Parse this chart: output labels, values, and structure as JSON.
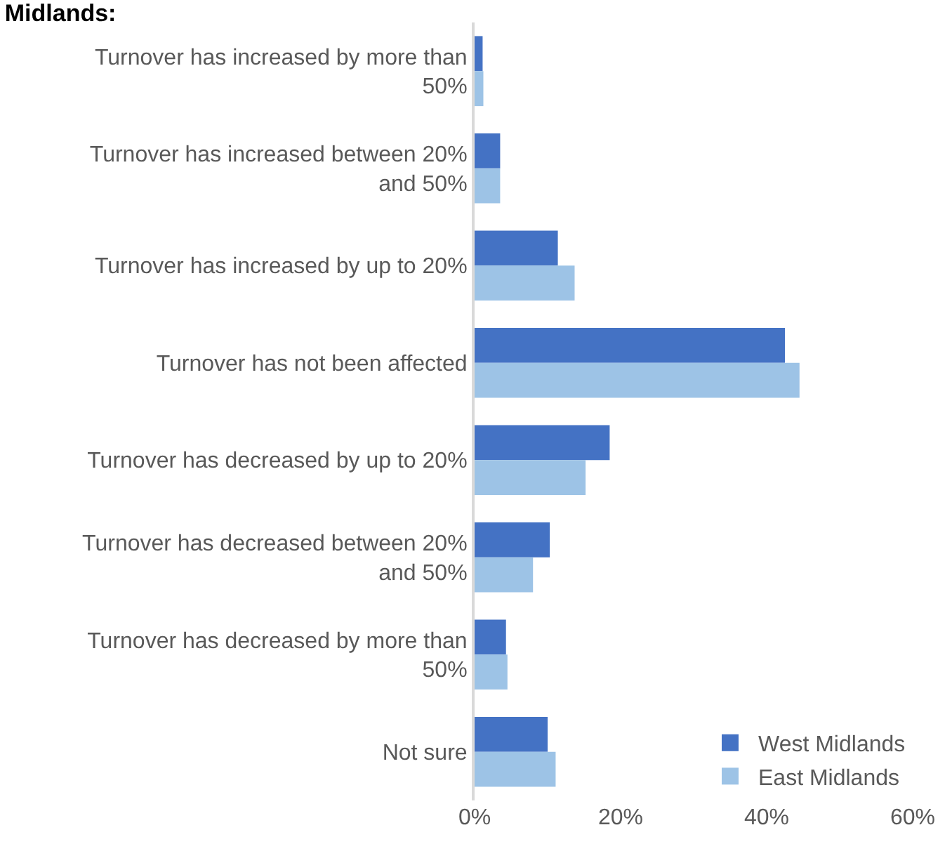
{
  "chart_data": {
    "type": "bar",
    "orientation": "horizontal",
    "title": "Midlands:",
    "categories": [
      "Turnover has increased by more than 50%",
      "Turnover has increased between 20% and 50%",
      "Turnover has increased by up to 20%",
      "Turnover has not been affected",
      "Turnover has decreased by up to 20%",
      "Turnover has decreased between 20% and 50%",
      "Turnover has decreased by more than 50%",
      "Not sure"
    ],
    "series": [
      {
        "name": "West Midlands",
        "color": "#4472c4",
        "values": [
          1.1,
          3.5,
          11.4,
          42.5,
          18.5,
          10.3,
          4.3,
          10.0
        ]
      },
      {
        "name": "East Midlands",
        "color": "#9dc3e6",
        "values": [
          1.2,
          3.5,
          13.7,
          44.5,
          15.2,
          8.0,
          4.5,
          11.1
        ]
      }
    ],
    "xlim": [
      0,
      60
    ],
    "xticks": [
      {
        "value": 0,
        "label": "0%"
      },
      {
        "value": 20,
        "label": "20%"
      },
      {
        "value": 40,
        "label": "40%"
      },
      {
        "value": 60,
        "label": "60%"
      }
    ],
    "legend": "bottom right"
  }
}
